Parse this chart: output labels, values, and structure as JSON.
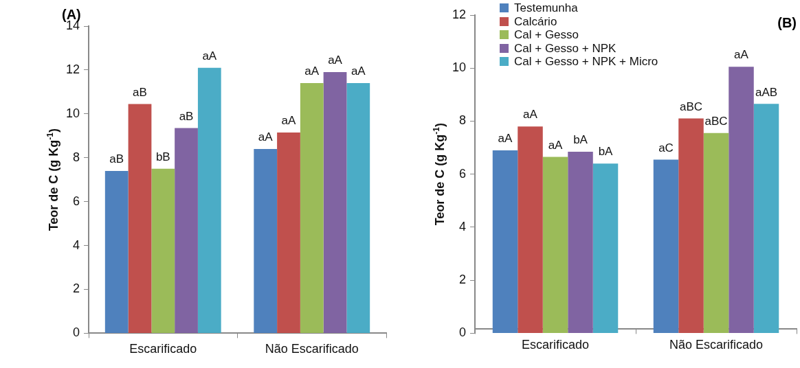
{
  "chart_data": [
    {
      "type": "bar",
      "title": "(A)",
      "ylabel": "Teor de C (g Kg$^{-1}$)",
      "categories": [
        "Escarificado",
        "Não Escarificado"
      ],
      "ylim": [
        0,
        14
      ],
      "yticks": [
        0,
        2,
        4,
        6,
        8,
        10,
        12,
        14
      ],
      "legend": false,
      "series": [
        {
          "color": "#4f81bd",
          "values": [
            7.4,
            8.4
          ],
          "value_labels": [
            "aB",
            "aA"
          ]
        },
        {
          "color": "#c0504d",
          "values": [
            10.45,
            9.15
          ],
          "value_labels": [
            "aB",
            "aA"
          ]
        },
        {
          "color": "#9bbb59",
          "values": [
            7.5,
            11.4
          ],
          "value_labels": [
            "bB",
            "aA"
          ]
        },
        {
          "color": "#8064a2",
          "values": [
            9.35,
            11.9
          ],
          "value_labels": [
            "aB",
            "aA"
          ]
        },
        {
          "color": "#4bacc6",
          "values": [
            12.1,
            11.4
          ],
          "value_labels": [
            "aA",
            "aA"
          ]
        }
      ]
    },
    {
      "type": "bar",
      "title": "(B)",
      "ylabel": "Teor de C (g Kg$^{-1}$)",
      "categories": [
        "Escarificado",
        "Não Escarificado"
      ],
      "ylim": [
        0,
        12
      ],
      "yticks": [
        0,
        2,
        4,
        6,
        8,
        10,
        12
      ],
      "legend": "top left",
      "series": [
        {
          "name": "Testemunha",
          "color": "#4f81bd",
          "values": [
            6.9,
            6.55
          ],
          "value_labels": [
            "aA",
            "aC"
          ]
        },
        {
          "name": "Calcário",
          "color": "#c0504d",
          "values": [
            7.8,
            8.1
          ],
          "value_labels": [
            "aA",
            "aBC"
          ]
        },
        {
          "name": "Cal + Gesso",
          "color": "#9bbb59",
          "values": [
            6.65,
            7.55
          ],
          "value_labels": [
            "aA",
            "aBC"
          ]
        },
        {
          "name": "Cal + Gesso + NPK",
          "color": "#8064a2",
          "values": [
            6.85,
            10.05
          ],
          "value_labels": [
            "bA",
            "aA"
          ]
        },
        {
          "name": "Cal + Gesso + NPK + Micro",
          "color": "#4bacc6",
          "values": [
            6.4,
            8.65
          ],
          "value_labels": [
            "bA",
            "aAB"
          ]
        }
      ]
    }
  ]
}
